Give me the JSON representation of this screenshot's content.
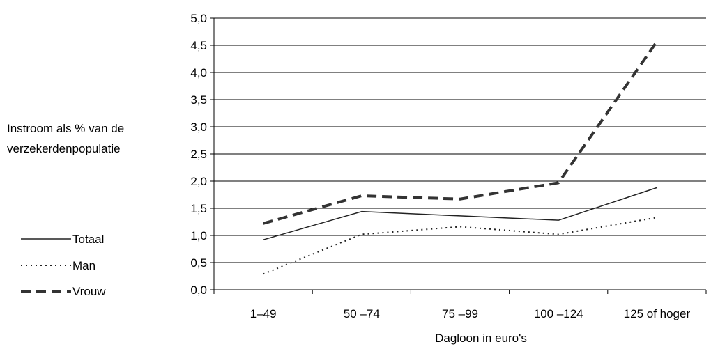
{
  "chart_data": {
    "type": "line",
    "categories": [
      "1–49",
      "50 –74",
      "75 –99",
      "100 –124",
      "125 of hoger"
    ],
    "series": [
      {
        "name": "Totaal",
        "values": [
          0.92,
          1.44,
          1.36,
          1.28,
          1.88
        ],
        "color": "#222222",
        "style": "solid"
      },
      {
        "name": "Man",
        "values": [
          0.29,
          1.02,
          1.16,
          1.02,
          1.33
        ],
        "color": "#222222",
        "style": "dotted"
      },
      {
        "name": "Vrouw",
        "values": [
          1.22,
          1.73,
          1.67,
          1.97,
          4.57
        ],
        "color": "#333333",
        "style": "dashed"
      }
    ],
    "yticks": [
      "0,0",
      "0,5",
      "1,0",
      "1,5",
      "2,0",
      "2,5",
      "3,0",
      "3,5",
      "4,0",
      "4,5",
      "5,0"
    ],
    "ylim": [
      0,
      5
    ],
    "ylabel_lines": [
      "Instroom als % van de",
      "verzekerdenpopulatie"
    ],
    "xlabel": "Dagloon in euro's",
    "grid": true,
    "legend_position": "left-bottom"
  }
}
